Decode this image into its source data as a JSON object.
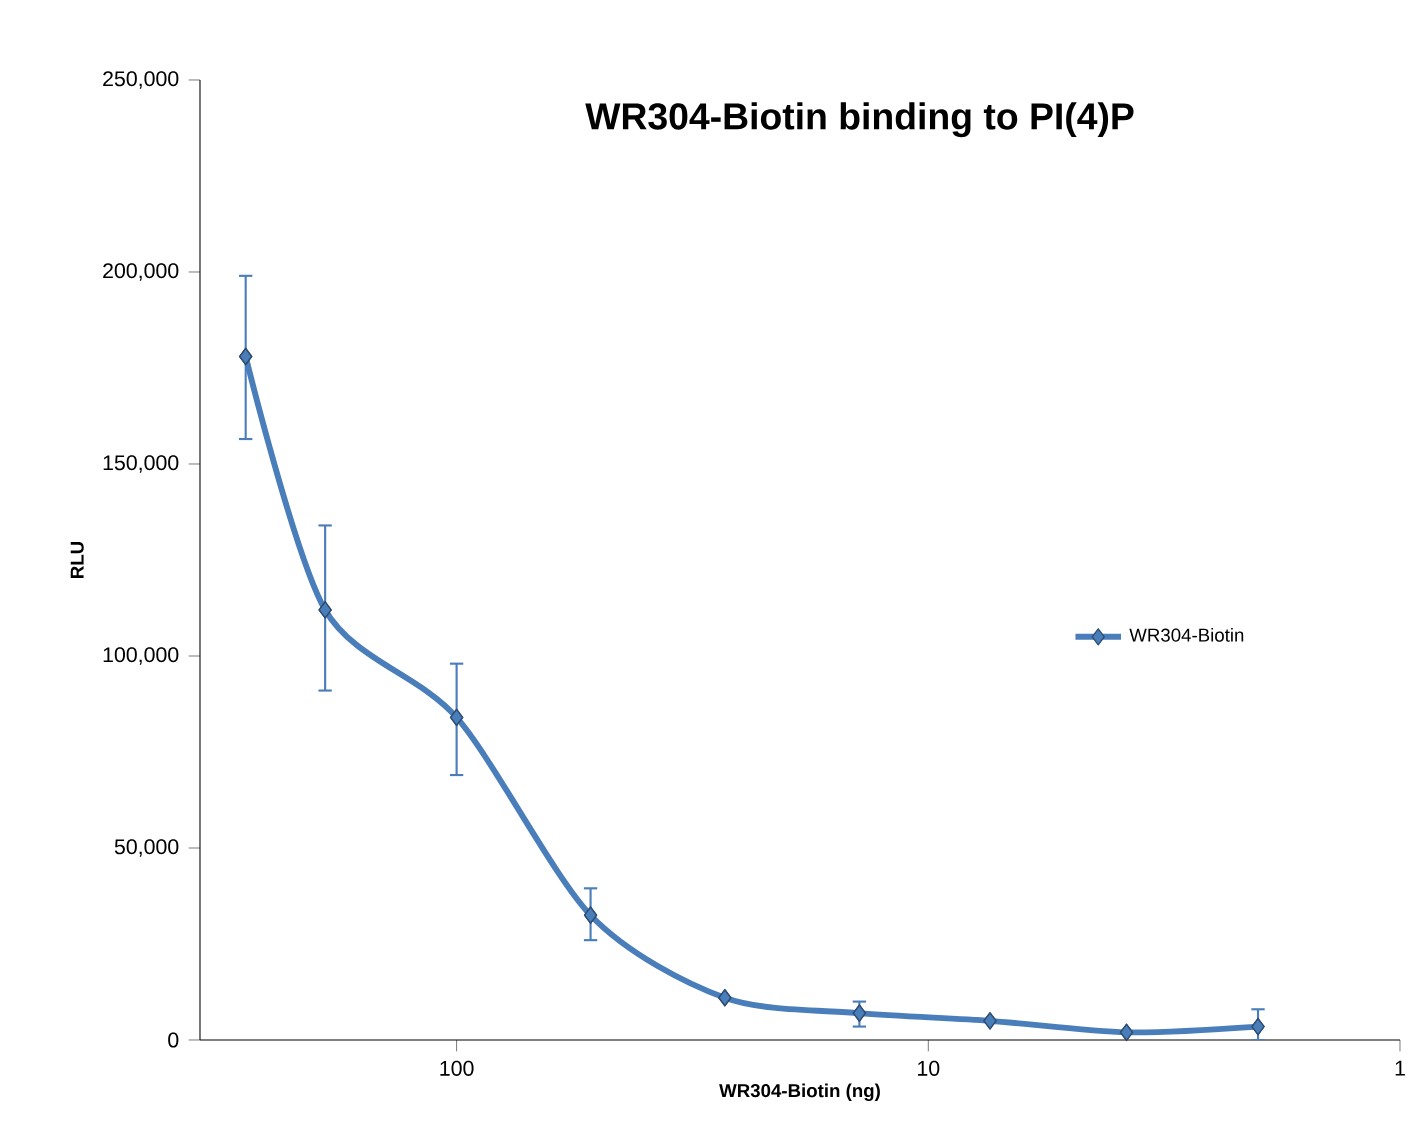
{
  "chart_data": {
    "type": "line",
    "title": "WR304-Biotin binding to PI(4)P",
    "xlabel": "WR304-Biotin (ng)",
    "ylabel": "RLU",
    "log": "x",
    "x": [
      280,
      190,
      100,
      52,
      27,
      14,
      7.4,
      3.8,
      2.0
    ],
    "series": [
      {
        "name": "WR304-Biotin",
        "color": "#4a7ebb",
        "values": [
          178000,
          112000,
          84000,
          32500,
          11000,
          7000,
          5000,
          2000,
          3500
        ],
        "errors": [
          [
            156500,
            199000
          ],
          [
            91000,
            134000
          ],
          [
            69000,
            98000
          ],
          [
            26000,
            39500
          ],
          null,
          [
            3500,
            10000
          ],
          null,
          null,
          [
            0,
            8000
          ]
        ]
      }
    ],
    "xlim": [
      350,
      1
    ],
    "xticks": [
      100,
      10,
      1
    ],
    "ylim": [
      0,
      250000
    ],
    "yticks": [
      {
        "value": 0,
        "label": "0"
      },
      {
        "value": 50000,
        "label": "50,000"
      },
      {
        "value": 100000,
        "label": "100,000"
      },
      {
        "value": 150000,
        "label": "150,000"
      },
      {
        "value": 200000,
        "label": "200,000"
      },
      {
        "value": 250000,
        "label": "250,000"
      }
    ],
    "grid": false,
    "legend": "right",
    "marker": "diamond",
    "line_style": "solid"
  }
}
